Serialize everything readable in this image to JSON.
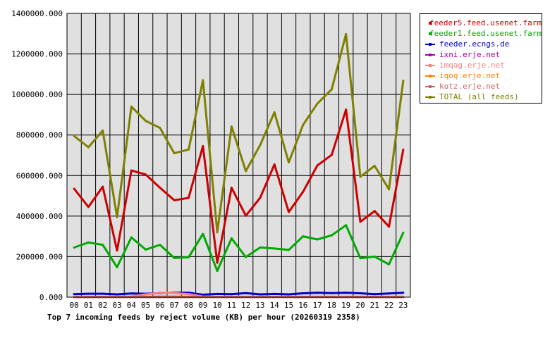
{
  "chart_data": {
    "type": "line",
    "title": "Top 7 incoming feeds by reject volume (KB) per hour (20260319 2358)",
    "xlabel": "",
    "ylabel": "",
    "categories": [
      "00",
      "01",
      "02",
      "03",
      "04",
      "05",
      "06",
      "07",
      "08",
      "09",
      "10",
      "11",
      "12",
      "13",
      "14",
      "15",
      "16",
      "17",
      "18",
      "19",
      "20",
      "21",
      "22",
      "23"
    ],
    "ylim": [
      0,
      1400000
    ],
    "yticks": [
      "0.000",
      "200000.000",
      "400000.000",
      "600000.000",
      "800000.000",
      "1000000.000",
      "1200000.000",
      "1400000.000"
    ],
    "ytick_values": [
      0,
      200000,
      400000,
      600000,
      800000,
      1000000,
      1200000,
      1400000
    ],
    "grid": true,
    "legend_placement": "right",
    "series": [
      {
        "name": "feeder5.feed.usenet.farm",
        "color": "#cc0000",
        "values": [
          535000,
          445000,
          545000,
          230000,
          625000,
          605000,
          540000,
          478000,
          490000,
          745000,
          170000,
          540000,
          402000,
          490000,
          655000,
          420000,
          520000,
          650000,
          702000,
          925000,
          372000,
          425000,
          348000,
          728000
        ]
      },
      {
        "name": "feeder1.feed.usenet.farm",
        "color": "#00aa00",
        "values": [
          245000,
          270000,
          258000,
          148000,
          295000,
          235000,
          258000,
          193000,
          197000,
          312000,
          130000,
          290000,
          198000,
          245000,
          240000,
          233000,
          300000,
          285000,
          305000,
          355000,
          192000,
          200000,
          162000,
          318000
        ]
      },
      {
        "name": "feeder.ecngs.de",
        "color": "#0000cc",
        "values": [
          15000,
          17000,
          17000,
          14000,
          18000,
          17000,
          20000,
          22000,
          22000,
          12000,
          16000,
          15000,
          20000,
          14000,
          16000,
          14000,
          19000,
          22000,
          20000,
          22000,
          19000,
          15000,
          18000,
          22000
        ]
      },
      {
        "name": "ixni.erje.net",
        "color": "#aa00aa",
        "values": [
          0,
          0,
          0,
          0,
          0,
          0,
          0,
          0,
          0,
          0,
          0,
          0,
          0,
          0,
          0,
          0,
          0,
          0,
          0,
          0,
          0,
          0,
          0,
          0
        ]
      },
      {
        "name": "imqag.erje.net",
        "color": "#ff8080",
        "values": [
          2000,
          2000,
          2000,
          2000,
          3000,
          14000,
          22000,
          20000,
          15000,
          3000,
          2000,
          2000,
          2000,
          2000,
          2000,
          2000,
          2000,
          2000,
          2000,
          2000,
          2000,
          2000,
          2000,
          2000
        ]
      },
      {
        "name": "iqoq.erje.net",
        "color": "#ff8000",
        "values": [
          1000,
          1000,
          1000,
          1000,
          1000,
          2000,
          3000,
          3000,
          2000,
          1000,
          1000,
          1000,
          1000,
          1000,
          1000,
          1000,
          1000,
          1000,
          1000,
          1000,
          1000,
          1000,
          1000,
          1000
        ]
      },
      {
        "name": "kotz.erje.net",
        "color": "#cc6666",
        "values": [
          0,
          0,
          0,
          0,
          0,
          0,
          0,
          0,
          0,
          0,
          0,
          0,
          0,
          0,
          0,
          0,
          0,
          0,
          0,
          0,
          0,
          0,
          0,
          0
        ]
      },
      {
        "name": "TOTAL (all feeds)",
        "color": "#808000",
        "values": [
          795000,
          740000,
          822000,
          395000,
          940000,
          870000,
          835000,
          710000,
          728000,
          1070000,
          320000,
          842000,
          622000,
          750000,
          912000,
          665000,
          850000,
          955000,
          1025000,
          1298000,
          594000,
          648000,
          532000,
          1068000
        ]
      }
    ]
  }
}
